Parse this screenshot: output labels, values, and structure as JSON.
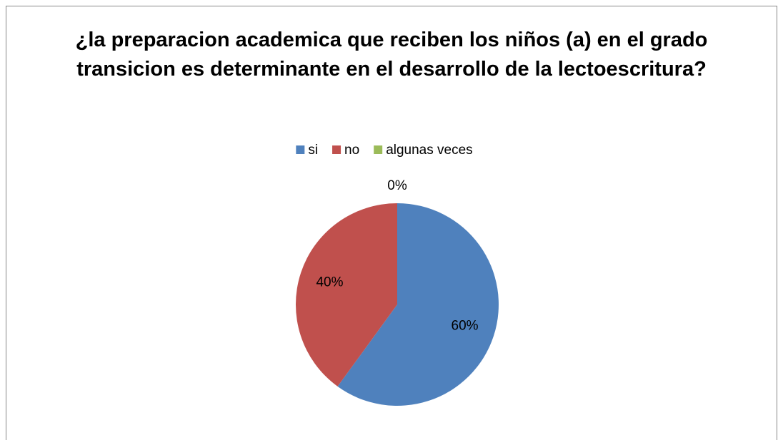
{
  "chart_data": {
    "type": "pie",
    "title": "¿la preparacion academica que reciben los niños (a) en el grado transicion es determinante en el desarrollo de la lectoescritura?",
    "categories": [
      "si",
      "no",
      "algunas veces"
    ],
    "values": [
      60,
      40,
      0
    ],
    "value_labels": [
      "60%",
      "40%",
      "0%"
    ],
    "colors": [
      "#4f81bd",
      "#c0504d",
      "#9bbb59"
    ],
    "legend": "top"
  }
}
